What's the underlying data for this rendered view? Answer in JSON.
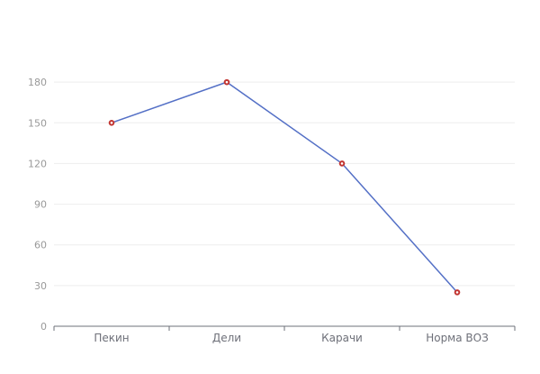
{
  "chart_data": {
    "type": "line",
    "categories": [
      "Пекин",
      "Дели",
      "Карачи",
      "Норма ВОЗ"
    ],
    "series": [
      {
        "values": [
          150,
          180,
          120,
          25
        ]
      }
    ],
    "yticks": [
      0,
      30,
      60,
      90,
      120,
      150,
      180
    ],
    "ylim": [
      0,
      210
    ],
    "grid": true,
    "colors": {
      "line": "#5470c6",
      "point": "#c23531"
    }
  }
}
